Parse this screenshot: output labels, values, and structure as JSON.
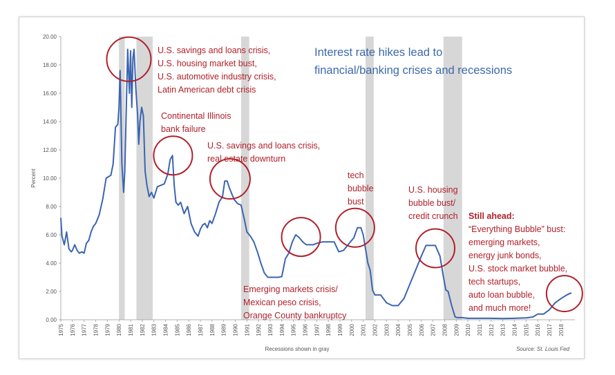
{
  "chart_data": {
    "type": "line",
    "title_lines": [
      "Interest rate hikes lead to",
      "financial/banking crises and recessions"
    ],
    "ylabel": "Percent",
    "xlabel": "Recessions shown in gray",
    "source": "Source: St. Louis Fed",
    "ylim": [
      0,
      20
    ],
    "xlim": [
      1975,
      2019.2
    ],
    "y_ticks": [
      "0.00",
      "2.00",
      "4.00",
      "6.00",
      "8.00",
      "10.00",
      "12.00",
      "14.00",
      "16.00",
      "18.00",
      "20.00"
    ],
    "x_ticks": [
      "1975",
      "1976",
      "1977",
      "1978",
      "1979",
      "1980",
      "1981",
      "1982",
      "1983",
      "1984",
      "1985",
      "1986",
      "1987",
      "1988",
      "1989",
      "1990",
      "1991",
      "1992",
      "1993",
      "1994",
      "1995",
      "1996",
      "1997",
      "1998",
      "1999",
      "2000",
      "2001",
      "2002",
      "2003",
      "2004",
      "2005",
      "2006",
      "2007",
      "2008",
      "2009",
      "2010",
      "2011",
      "2012",
      "2013",
      "2014",
      "2015",
      "2016",
      "2017",
      "2018"
    ],
    "grid": false,
    "line_color": "#3a64b0",
    "annotation_color": "#b0202a",
    "title_color": "#3c6aa8",
    "recessions": [
      [
        1980.0,
        1980.5
      ],
      [
        1981.5,
        1982.9
      ],
      [
        1990.5,
        1991.2
      ],
      [
        2001.2,
        2001.9
      ],
      [
        2007.9,
        2009.5
      ]
    ],
    "series": [
      {
        "x": [
          1975.0,
          1975.1,
          1975.3,
          1975.5,
          1975.7,
          1975.9,
          1976.0,
          1976.2,
          1976.4,
          1976.6,
          1976.8,
          1977.0,
          1977.2,
          1977.4,
          1977.6,
          1977.8,
          1978.0,
          1978.3,
          1978.6,
          1978.9,
          1979.1,
          1979.3,
          1979.5,
          1979.7,
          1979.9,
          1980.0,
          1980.1,
          1980.25,
          1980.4,
          1980.5,
          1980.6,
          1980.75,
          1980.9,
          1981.0,
          1981.1,
          1981.2,
          1981.3,
          1981.45,
          1981.6,
          1981.7,
          1981.8,
          1981.95,
          1982.1,
          1982.25,
          1982.4,
          1982.6,
          1982.8,
          1983.0,
          1983.3,
          1983.6,
          1983.9,
          1984.2,
          1984.4,
          1984.6,
          1984.75,
          1984.9,
          1985.1,
          1985.3,
          1985.6,
          1985.9,
          1986.2,
          1986.5,
          1986.8,
          1987.0,
          1987.2,
          1987.4,
          1987.6,
          1987.8,
          1988.0,
          1988.3,
          1988.6,
          1988.9,
          1989.1,
          1989.3,
          1989.5,
          1989.7,
          1989.9,
          1990.2,
          1990.5,
          1990.8,
          1991.0,
          1991.3,
          1991.6,
          1991.9,
          1992.2,
          1992.5,
          1992.8,
          1993.1,
          1993.4,
          1993.7,
          1994.0,
          1994.3,
          1994.6,
          1994.9,
          1995.2,
          1995.5,
          1995.8,
          1996.1,
          1996.4,
          1996.7,
          1997.0,
          1997.5,
          1998.0,
          1998.5,
          1998.9,
          1999.3,
          1999.6,
          1999.9,
          2000.2,
          2000.5,
          2000.8,
          2001.0,
          2001.2,
          2001.4,
          2001.6,
          2001.8,
          2002.0,
          2002.5,
          2003.0,
          2003.5,
          2004.0,
          2004.5,
          2005.0,
          2005.5,
          2006.0,
          2006.4,
          2006.8,
          2007.2,
          2007.6,
          2007.9,
          2008.1,
          2008.3,
          2008.6,
          2008.9,
          2009.1,
          2009.5,
          2010.0,
          2011.0,
          2012.0,
          2013.0,
          2014.0,
          2015.0,
          2015.6,
          2016.0,
          2016.5,
          2017.0,
          2017.5,
          2018.0,
          2018.5,
          2018.9
        ],
        "values": [
          7.2,
          5.9,
          5.3,
          6.2,
          5.0,
          4.8,
          4.9,
          5.3,
          4.9,
          4.7,
          4.8,
          4.7,
          5.4,
          5.6,
          6.2,
          6.6,
          6.8,
          7.4,
          8.5,
          10.0,
          10.1,
          10.2,
          11.0,
          13.6,
          13.8,
          15.0,
          17.6,
          11.0,
          9.0,
          10.5,
          14.0,
          19.1,
          16.0,
          19.0,
          15.0,
          18.5,
          19.1,
          16.3,
          14.5,
          12.4,
          14.0,
          15.0,
          14.4,
          10.5,
          9.5,
          8.7,
          9.0,
          8.6,
          9.4,
          9.5,
          9.6,
          10.3,
          11.3,
          11.6,
          9.5,
          8.3,
          8.1,
          8.3,
          7.5,
          8.0,
          6.8,
          6.2,
          5.9,
          6.4,
          6.7,
          6.8,
          6.5,
          7.0,
          6.8,
          7.5,
          8.3,
          8.7,
          9.8,
          9.8,
          9.3,
          8.9,
          8.5,
          8.2,
          8.1,
          7.0,
          6.2,
          5.9,
          5.5,
          4.8,
          4.0,
          3.3,
          3.0,
          3.0,
          3.0,
          3.0,
          3.05,
          4.3,
          4.7,
          5.5,
          6.0,
          5.8,
          5.5,
          5.3,
          5.3,
          5.3,
          5.4,
          5.5,
          5.5,
          5.5,
          4.8,
          4.9,
          5.2,
          5.5,
          5.8,
          6.5,
          6.5,
          6.0,
          5.0,
          4.0,
          3.5,
          2.1,
          1.75,
          1.75,
          1.2,
          1.0,
          1.0,
          1.5,
          2.5,
          3.5,
          4.5,
          5.25,
          5.25,
          5.25,
          4.5,
          3.0,
          2.1,
          2.0,
          1.0,
          0.2,
          0.15,
          0.15,
          0.1,
          0.1,
          0.1,
          0.09,
          0.1,
          0.13,
          0.2,
          0.4,
          0.4,
          0.7,
          1.2,
          1.5,
          1.75,
          1.9
        ]
      }
    ],
    "circles": [
      {
        "x": 1980.85,
        "y": 18.4,
        "r": 32
      },
      {
        "x": 1984.65,
        "y": 11.6,
        "r": 28
      },
      {
        "x": 1989.55,
        "y": 9.95,
        "r": 29
      },
      {
        "x": 1995.65,
        "y": 5.85,
        "r": 28
      },
      {
        "x": 2000.3,
        "y": 6.5,
        "r": 28
      },
      {
        "x": 2007.2,
        "y": 5.05,
        "r": 28
      },
      {
        "x": 2018.3,
        "y": 1.85,
        "r": 26
      }
    ],
    "annotations": [
      {
        "lines": [
          "U.S. savings and loans crisis,",
          "U.S. housing market bust,",
          "U.S. automotive industry crisis,",
          "Latin American debt crisis"
        ]
      },
      {
        "lines": [
          "Continental Illinois",
          "bank failure"
        ]
      },
      {
        "lines": [
          "U.S. savings and loans crisis,",
          "real estate downturn"
        ]
      },
      {
        "lines": [
          "tech",
          "bubble",
          "bust"
        ]
      },
      {
        "lines": [
          "U.S. housing",
          "bubble bust/",
          "credit crunch"
        ]
      },
      {
        "heading": "Still ahead:",
        "lines": [
          "“Everything Bubble” bust:",
          "emerging markets,",
          "energy junk bonds,",
          "U.S. stock market bubble,",
          "tech startups,",
          "auto loan bubble,",
          "and much more!"
        ]
      },
      {
        "lines": [
          "Emerging markets crisis/",
          "Mexican peso crisis,",
          "Orange County bankruptcy"
        ]
      }
    ]
  }
}
